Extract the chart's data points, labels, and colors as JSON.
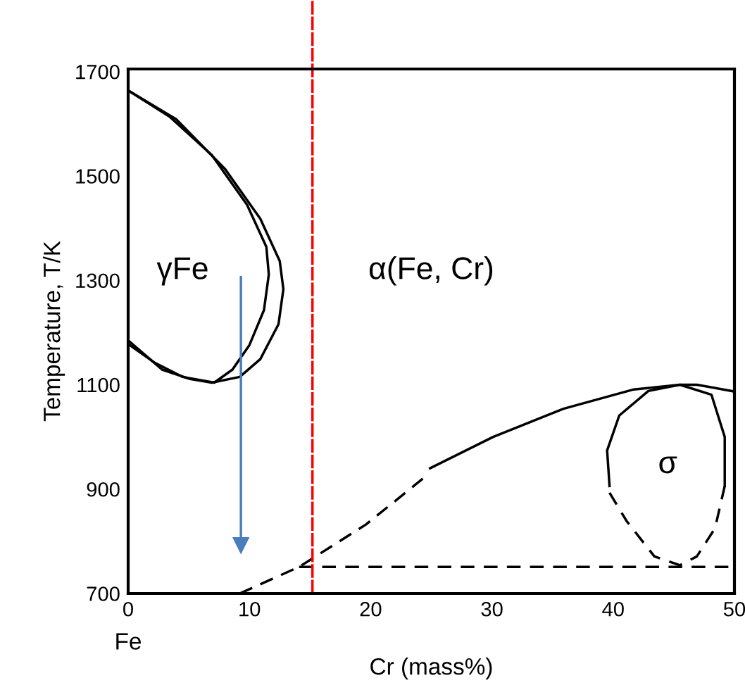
{
  "chart_data": {
    "type": "line",
    "xlabel": "Cr (mass%)",
    "ylabel": "Temperature, T/K",
    "xlim": [
      0,
      50
    ],
    "ylim": [
      700,
      1705
    ],
    "xticks": [
      0,
      10,
      20,
      30,
      40,
      50
    ],
    "yticks": [
      700,
      900,
      1100,
      1300,
      1500,
      1700
    ],
    "grid": false,
    "legend": false,
    "marker": "none",
    "series": [
      {
        "color": "#000000",
        "line_style": "solid",
        "x": [
          0,
          3.95,
          8.0,
          10.9,
          12.5,
          12.8,
          12.4,
          10.9,
          9.2,
          6.9,
          5.1,
          2.8,
          0
        ],
        "values": [
          1664,
          1609,
          1513,
          1418,
          1337,
          1283,
          1216,
          1149,
          1115,
          1104,
          1111,
          1129,
          1185
        ]
      },
      {
        "color": "#000000",
        "line_style": "solid",
        "x": [
          0,
          3.4,
          6.9,
          9.8,
          11.4,
          11.6,
          11.2,
          10.0,
          8.6,
          7.1,
          4.5,
          2.2,
          0
        ],
        "values": [
          1664,
          1614,
          1540,
          1445,
          1364,
          1311,
          1243,
          1176,
          1129,
          1104,
          1115,
          1142,
          1178
        ]
      },
      {
        "color": "#000000",
        "line_style": "dashed",
        "x": [
          9.2,
          14.1,
          19.6,
          24.3
        ],
        "values": [
          700,
          751,
          832,
          920
        ]
      },
      {
        "color": "#000000",
        "line_style": "solid",
        "x": [
          24.9,
          30.1,
          35.9,
          41.7,
          45.5,
          46.9,
          50
        ],
        "values": [
          940,
          1000,
          1054,
          1091,
          1100,
          1100,
          1087
        ]
      },
      {
        "color": "#000000",
        "line_style": "dashed",
        "x": [
          14.1,
          49.5
        ],
        "values": [
          751,
          751
        ]
      },
      {
        "color": "#000000",
        "line_style": "solid",
        "x": [
          39.7,
          39.5,
          40.5,
          42.9,
          45.5,
          48.1,
          49.2,
          49.2
        ],
        "values": [
          906,
          974,
          1041,
          1088,
          1100,
          1081,
          1000,
          906
        ]
      },
      {
        "color": "#000000",
        "line_style": "dashed",
        "x": [
          49.2,
          48.4,
          46.9,
          45.5,
          43.4,
          41.1,
          39.7
        ],
        "values": [
          906,
          825,
          771,
          754,
          771,
          839,
          893
        ]
      },
      {
        "type": "line",
        "marker": "triangle",
        "color": "#4a7ebb",
        "line_style": "solid",
        "x": [
          9.3,
          9.3
        ],
        "values": [
          1306,
          792
        ]
      }
    ],
    "ref_lines": [
      {
        "axis": "x",
        "value": 15.2,
        "color": "#ff0000",
        "line_style": "dashed"
      }
    ],
    "annotations": [
      "γFe",
      "α(Fe, Cr)",
      "σ",
      "Fe"
    ]
  }
}
